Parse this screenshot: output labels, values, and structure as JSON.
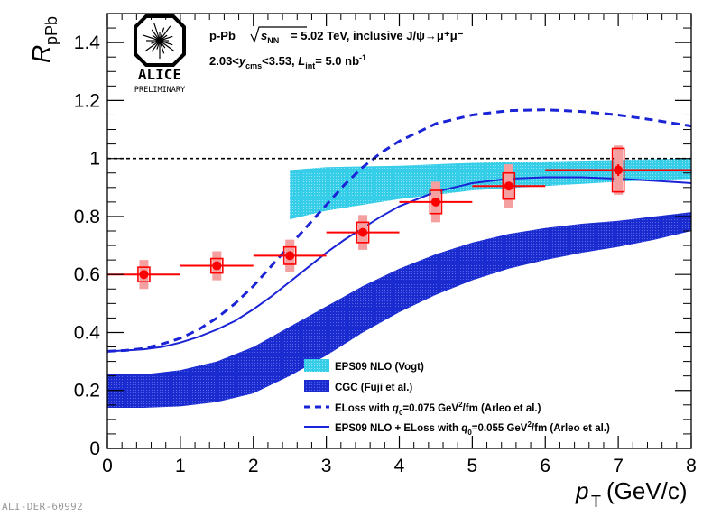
{
  "chart_data": {
    "type": "scatter",
    "title": "",
    "header_line1": {
      "system": "p-Pb",
      "energy_value": "= 5.02 TeV, inclusive J/ψ→μ⁺μ⁻"
    },
    "header_line2": {
      "rapidity": "2.03<y_cms<3.53,",
      "luminosity": "L_int= 5.0 nb⁻¹"
    },
    "xlabel": "p_T (GeV/c)",
    "ylabel": "R_pPb",
    "xlim": [
      0,
      8
    ],
    "ylim": [
      0,
      1.5
    ],
    "x_ticks": [
      0,
      1,
      2,
      3,
      4,
      5,
      6,
      7,
      8
    ],
    "x_tick_labels": [
      "0",
      "1",
      "2",
      "3",
      "4",
      "5",
      "6",
      "7",
      "8"
    ],
    "y_ticks": [
      0,
      0.2,
      0.4,
      0.6,
      0.8,
      1,
      1.2,
      1.4
    ],
    "y_tick_labels": [
      "0",
      "0.2",
      "0.4",
      "0.6",
      "0.8",
      "1",
      "1.2",
      "1.4"
    ],
    "reference_line": 1,
    "logo": {
      "name": "ALICE",
      "subtitle": "PRELIMINARY"
    },
    "footer_id": "ALI-DER-60992",
    "colors": {
      "data": "#ff0000",
      "corr_syst": "#f4a0a0",
      "eps09": "#33cce6",
      "cgc": "#1c2fcf",
      "eloss": "#1a23d6"
    },
    "series": [
      {
        "name": "ALICE data",
        "kind": "points",
        "x": [
          0.5,
          1.5,
          2.5,
          3.5,
          4.5,
          5.5,
          7.0
        ],
        "y": [
          0.6,
          0.63,
          0.665,
          0.745,
          0.85,
          0.905,
          0.96
        ],
        "x_err": [
          0.5,
          0.5,
          0.5,
          0.5,
          0.5,
          0.5,
          1.0
        ],
        "y_err_stat": [
          0.005,
          0.005,
          0.01,
          0.01,
          0.01,
          0.015,
          0.02
        ],
        "y_syst_uncorr": [
          0.025,
          0.025,
          0.03,
          0.035,
          0.04,
          0.045,
          0.075
        ],
        "y_syst_corr": [
          0.05,
          0.05,
          0.055,
          0.06,
          0.07,
          0.075,
          0.085
        ]
      },
      {
        "name": "EPS09 NLO (Vogt)",
        "kind": "band",
        "x": [
          2.5,
          3,
          4,
          5,
          6,
          7,
          8
        ],
        "y_low": [
          0.79,
          0.82,
          0.86,
          0.89,
          0.905,
          0.92,
          0.93
        ],
        "y_high": [
          0.96,
          0.97,
          0.975,
          0.985,
          0.99,
          0.995,
          1.0
        ]
      },
      {
        "name": "CGC (Fuji et al.)",
        "kind": "band",
        "x": [
          0,
          0.5,
          1,
          1.5,
          2,
          2.5,
          3,
          3.5,
          4,
          4.5,
          5,
          5.5,
          6,
          6.5,
          7,
          7.5,
          8
        ],
        "y_low": [
          0.14,
          0.14,
          0.145,
          0.16,
          0.19,
          0.25,
          0.32,
          0.4,
          0.47,
          0.53,
          0.58,
          0.62,
          0.65,
          0.675,
          0.695,
          0.72,
          0.75
        ],
        "y_high": [
          0.255,
          0.255,
          0.27,
          0.3,
          0.35,
          0.42,
          0.49,
          0.56,
          0.62,
          0.67,
          0.71,
          0.74,
          0.76,
          0.775,
          0.785,
          0.8,
          0.815
        ]
      },
      {
        "name": "ELoss with q0=0.075 GeV²/fm (Arleo et al.)",
        "kind": "line",
        "dashed": true,
        "x": [
          0,
          0.25,
          0.5,
          0.75,
          1,
          1.25,
          1.5,
          1.75,
          2,
          2.25,
          2.5,
          2.75,
          3,
          3.25,
          3.5,
          3.75,
          4,
          4.5,
          5,
          5.5,
          6,
          6.5,
          7,
          7.5,
          8
        ],
        "y": [
          0.335,
          0.338,
          0.345,
          0.36,
          0.38,
          0.41,
          0.45,
          0.5,
          0.56,
          0.63,
          0.7,
          0.77,
          0.84,
          0.91,
          0.97,
          1.02,
          1.06,
          1.12,
          1.15,
          1.165,
          1.168,
          1.162,
          1.15,
          1.132,
          1.112
        ]
      },
      {
        "name": "EPS09 NLO + ELoss with q0=0.055 GeV²/fm (Arleo et al.)",
        "kind": "line",
        "dashed": false,
        "x": [
          0,
          0.25,
          0.5,
          0.75,
          1,
          1.25,
          1.5,
          1.75,
          2,
          2.25,
          2.5,
          2.75,
          3,
          3.25,
          3.5,
          3.75,
          4,
          4.5,
          5,
          5.5,
          6,
          6.5,
          7,
          7.5,
          8
        ],
        "y": [
          0.335,
          0.338,
          0.342,
          0.35,
          0.365,
          0.385,
          0.41,
          0.44,
          0.48,
          0.525,
          0.575,
          0.625,
          0.675,
          0.72,
          0.76,
          0.8,
          0.835,
          0.885,
          0.915,
          0.93,
          0.935,
          0.935,
          0.93,
          0.923,
          0.915
        ]
      }
    ],
    "legend": [
      {
        "label": "EPS09 NLO (Vogt)",
        "kind": "band-eps09"
      },
      {
        "label": "CGC (Fuji et al.)",
        "kind": "band-cgc"
      },
      {
        "label_pre": "ELoss with ",
        "label_q": "q",
        "label_sub": "0",
        "label_post": "=0.075 GeV",
        "label_sup": "2",
        "label_end": "/fm (Arleo et al.)",
        "kind": "dashed"
      },
      {
        "label_pre": "EPS09 NLO + ELoss with ",
        "label_q": "q",
        "label_sub": "0",
        "label_post": "=0.055 GeV",
        "label_sup": "2",
        "label_end": "/fm (Arleo et al.)",
        "kind": "solid"
      }
    ],
    "legend_position": "lower-right"
  }
}
